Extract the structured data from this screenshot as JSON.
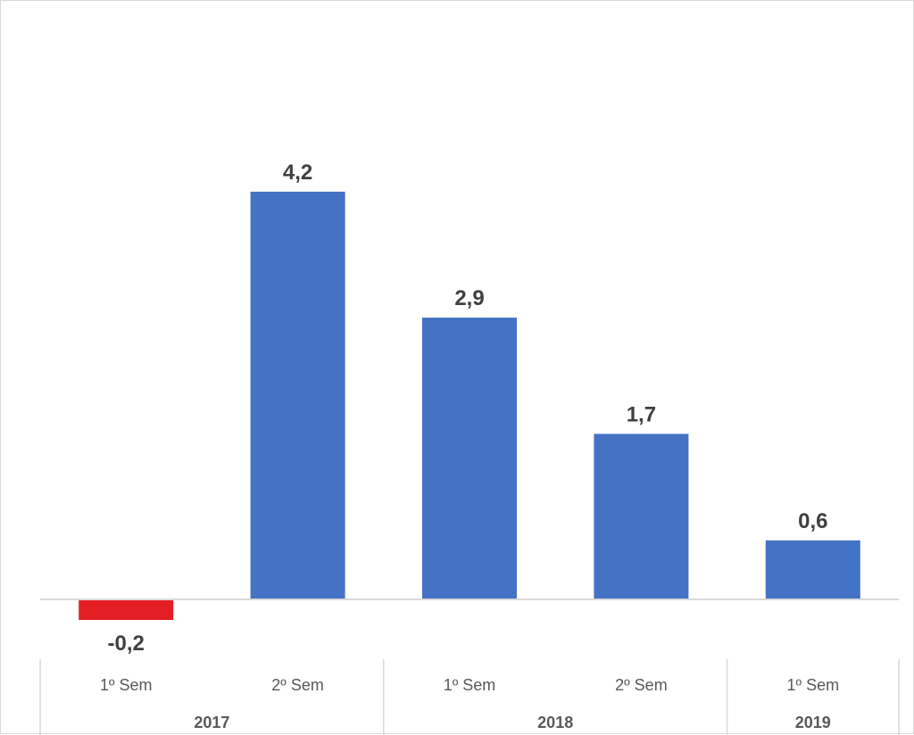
{
  "colors": {
    "positive": "#4472C4",
    "negative": "#E31E24",
    "axis": "#d9d9d9",
    "text": "#404040"
  },
  "chart_data": {
    "type": "bar",
    "categories": [
      "1º Sem",
      "2º Sem",
      "1º Sem",
      "2º Sem",
      "1º Sem"
    ],
    "groups": [
      {
        "label": "2017",
        "categories": [
          "1º Sem",
          "2º Sem"
        ]
      },
      {
        "label": "2018",
        "categories": [
          "1º Sem",
          "2º Sem"
        ]
      },
      {
        "label": "2019",
        "categories": [
          "1º Sem"
        ]
      }
    ],
    "values": [
      -0.2,
      4.2,
      2.9,
      1.7,
      0.6
    ],
    "data_labels": [
      "-0,2",
      "4,2",
      "2,9",
      "1,7",
      "0,6"
    ],
    "title": "",
    "xlabel": "",
    "ylabel": "",
    "ylim": [
      -0.2,
      4.2
    ],
    "grid": false,
    "legend": "none"
  }
}
